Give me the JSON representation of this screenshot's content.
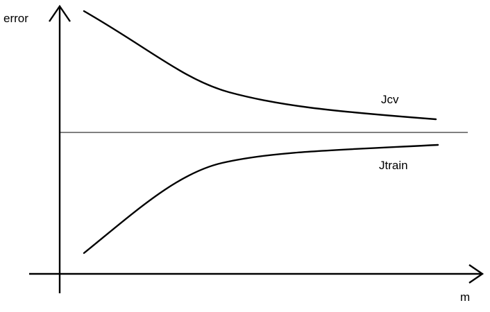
{
  "diagram": {
    "y_axis_label": "error",
    "x_axis_label": "m",
    "curves": {
      "cv": {
        "label": "Jcv"
      },
      "train": {
        "label": "Jtrain"
      }
    },
    "colors": {
      "background": "#ffffff",
      "ink": "#000000"
    }
  }
}
